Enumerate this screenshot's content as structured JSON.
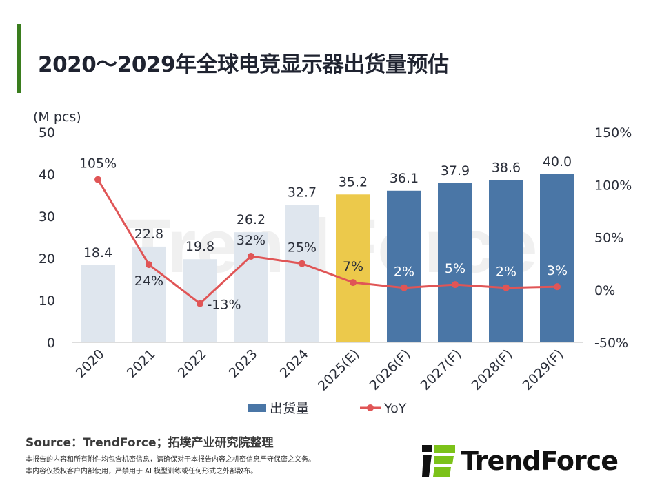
{
  "title": "2020～2029年全球电竞显示器出货量预估",
  "chart_data": {
    "type": "bar+line",
    "categories": [
      "2020",
      "2021",
      "2022",
      "2023",
      "2024",
      "2025(E)",
      "2026(F)",
      "2027(F)",
      "2028(F)",
      "2029(F)"
    ],
    "series": [
      {
        "name": "出货量",
        "type": "bar",
        "axis": "left",
        "values": [
          18.4,
          22.8,
          19.8,
          26.2,
          32.7,
          35.2,
          36.1,
          37.9,
          38.6,
          40.0
        ],
        "labels": [
          "18.4",
          "22.8",
          "19.8",
          "26.2",
          "32.7",
          "35.2",
          "36.1",
          "37.9",
          "38.6",
          "40.0"
        ],
        "colors": [
          "#dfe6ee",
          "#dfe6ee",
          "#dfe6ee",
          "#dfe6ee",
          "#dfe6ee",
          "#ecc94b",
          "#4a76a6",
          "#4a76a6",
          "#4a76a6",
          "#4a76a6"
        ]
      },
      {
        "name": "YoY",
        "type": "line",
        "axis": "right",
        "values": [
          105,
          24,
          -13,
          32,
          25,
          7,
          2,
          5,
          2,
          3
        ],
        "labels": [
          "105%",
          "24%",
          "-13%",
          "32%",
          "25%",
          "7%",
          "2%",
          "5%",
          "2%",
          "3%"
        ],
        "color": "#e05556"
      }
    ],
    "ylabel": "(M pcs)",
    "ylim": [
      0,
      50
    ],
    "yticks": [
      "0",
      "10",
      "20",
      "30",
      "40",
      "50"
    ],
    "y2lim": [
      -50,
      150
    ],
    "y2ticks": [
      "-50%",
      "0%",
      "50%",
      "100%",
      "150%"
    ],
    "legend": "bottom",
    "grid": false
  },
  "watermark": "TrendForce",
  "source": "Source：TrendForce；拓墣产业研究院整理",
  "notes": [
    "本报告的内容和所有附件均包含机密信息，请确保对于本报告内容之机密信息严守保密之义务。",
    "本内容仅授权客户内部使用，严禁用于 AI 模型训练或任何形式之外部散布。"
  ],
  "logo_text": "TrendForce"
}
